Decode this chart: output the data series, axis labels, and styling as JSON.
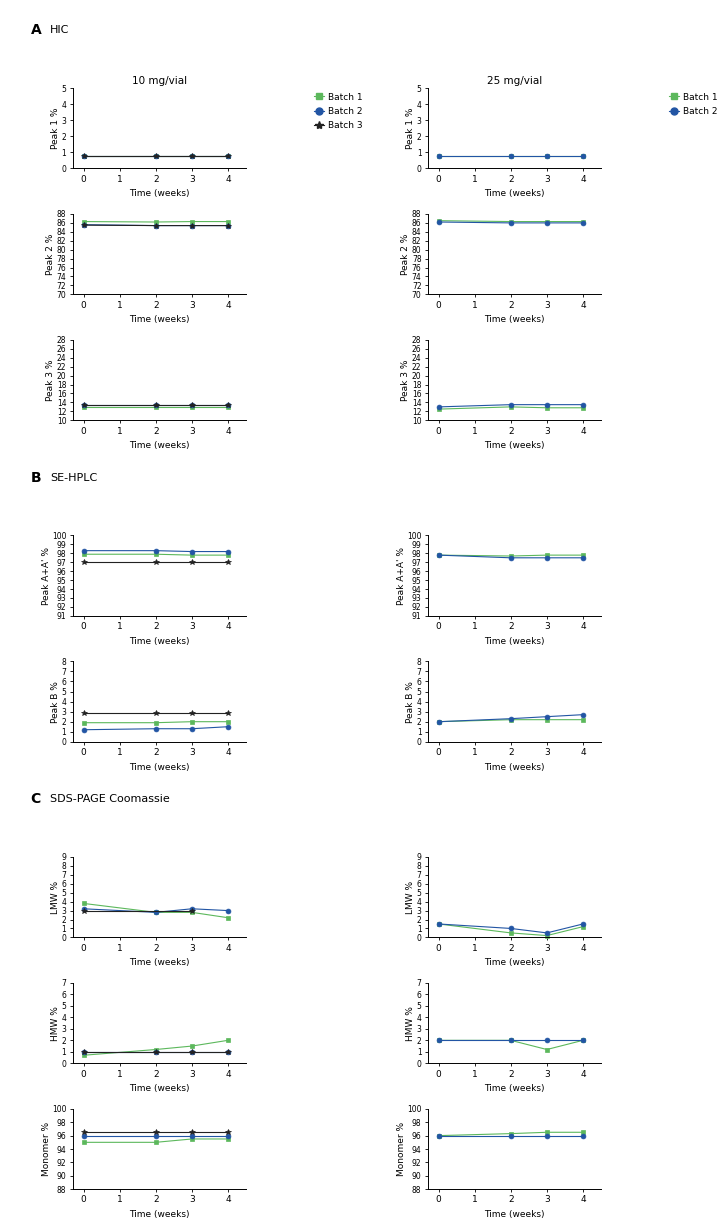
{
  "time": [
    0,
    2,
    3,
    4
  ],
  "colors": {
    "batch1": "#5cb85c",
    "batch2": "#2255a4",
    "batch3": "#222222"
  },
  "hic_10": {
    "peak1": {
      "b1": [
        0.8,
        0.8,
        0.8,
        0.8
      ],
      "b2": [
        0.8,
        0.8,
        0.8,
        0.8
      ],
      "b3": [
        0.8,
        0.8,
        0.8,
        0.8
      ]
    },
    "peak2": {
      "b1": [
        86.3,
        86.2,
        86.3,
        86.3
      ],
      "b2": [
        85.6,
        85.4,
        85.4,
        85.4
      ],
      "b3": [
        85.5,
        85.4,
        85.4,
        85.4
      ]
    },
    "peak3": {
      "b1": [
        13.0,
        13.0,
        13.0,
        13.0
      ],
      "b2": [
        13.5,
        13.5,
        13.5,
        13.5
      ],
      "b3": [
        13.5,
        13.5,
        13.5,
        13.5
      ]
    }
  },
  "hic_25": {
    "peak1": {
      "b1": [
        0.8,
        0.8,
        0.8,
        0.8
      ],
      "b2": [
        0.8,
        0.8,
        0.8,
        0.8
      ]
    },
    "peak2": {
      "b1": [
        86.5,
        86.3,
        86.3,
        86.3
      ],
      "b2": [
        86.2,
        86.0,
        86.0,
        86.0
      ]
    },
    "peak3": {
      "b1": [
        12.5,
        13.0,
        12.8,
        12.8
      ],
      "b2": [
        13.0,
        13.5,
        13.5,
        13.5
      ]
    }
  },
  "sehplc_10": {
    "peakA": {
      "b1": [
        97.9,
        97.9,
        97.8,
        97.8
      ],
      "b2": [
        98.3,
        98.3,
        98.2,
        98.2
      ],
      "b3": [
        97.0,
        97.0,
        97.0,
        97.0
      ]
    },
    "peakB": {
      "b1": [
        1.9,
        1.9,
        2.0,
        2.0
      ],
      "b2": [
        1.2,
        1.3,
        1.3,
        1.5
      ],
      "b3": [
        2.9,
        2.9,
        2.9,
        2.9
      ]
    }
  },
  "sehplc_25": {
    "peakA": {
      "b1": [
        97.8,
        97.7,
        97.8,
        97.8
      ],
      "b2": [
        97.8,
        97.5,
        97.5,
        97.5
      ]
    },
    "peakB": {
      "b1": [
        2.0,
        2.2,
        2.2,
        2.2
      ],
      "b2": [
        2.0,
        2.3,
        2.5,
        2.7
      ]
    }
  },
  "sds_10": {
    "lmw": {
      "b1": [
        3.8,
        2.8,
        2.8,
        2.2
      ],
      "b2": [
        3.2,
        2.8,
        3.2,
        3.0
      ],
      "b3": [
        3.0,
        null,
        3.0,
        null
      ]
    },
    "hmw": {
      "b1": [
        0.7,
        1.2,
        1.5,
        2.0
      ],
      "b2": [
        1.0,
        1.0,
        1.0,
        1.0
      ],
      "b3": [
        1.0,
        1.0,
        1.0,
        1.0
      ]
    },
    "mono": {
      "b1": [
        95.0,
        95.0,
        95.5,
        95.5
      ],
      "b2": [
        96.0,
        96.0,
        96.0,
        96.0
      ],
      "b3": [
        96.5,
        96.5,
        96.5,
        96.5
      ]
    }
  },
  "sds_25": {
    "lmw": {
      "b1": [
        1.5,
        0.5,
        0.2,
        1.2
      ],
      "b2": [
        1.5,
        1.0,
        0.5,
        1.5
      ]
    },
    "hmw": {
      "b1": [
        2.0,
        2.0,
        1.2,
        2.0
      ],
      "b2": [
        2.0,
        2.0,
        2.0,
        2.0
      ]
    },
    "mono": {
      "b1": [
        96.0,
        96.3,
        96.5,
        96.5
      ],
      "b2": [
        96.0,
        96.0,
        96.0,
        96.0
      ]
    }
  },
  "ylims": {
    "hic_peak1": [
      0,
      5
    ],
    "hic_peak2": [
      70,
      88
    ],
    "hic_peak3": [
      10,
      28
    ],
    "sehplc_peakA": [
      91,
      100
    ],
    "sehplc_peakB": [
      0,
      8
    ],
    "sds_lmw": [
      0,
      9
    ],
    "sds_hmw": [
      0,
      7
    ],
    "sds_mono": [
      88,
      100
    ]
  },
  "yticks": {
    "hic_peak1": [
      0,
      1,
      2,
      3,
      4,
      5
    ],
    "hic_peak2": [
      70,
      72,
      74,
      76,
      78,
      80,
      82,
      84,
      86,
      88
    ],
    "hic_peak3": [
      10,
      12,
      14,
      16,
      18,
      20,
      22,
      24,
      26,
      28
    ],
    "sehplc_peakA": [
      91,
      92,
      93,
      94,
      95,
      96,
      97,
      98,
      99,
      100
    ],
    "sehplc_peakB": [
      0,
      1,
      2,
      3,
      4,
      5,
      6,
      7,
      8
    ],
    "sds_lmw": [
      0,
      1,
      2,
      3,
      4,
      5,
      6,
      7,
      8,
      9
    ],
    "sds_hmw": [
      0,
      1,
      2,
      3,
      4,
      5,
      6,
      7
    ],
    "sds_mono": [
      88,
      90,
      92,
      94,
      96,
      98,
      100
    ]
  }
}
